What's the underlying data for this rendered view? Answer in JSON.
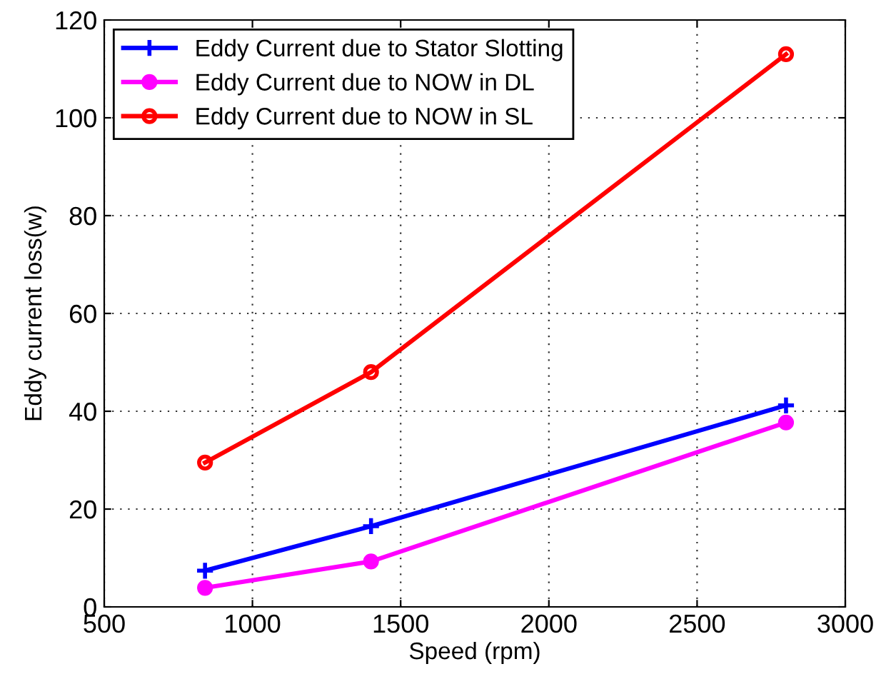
{
  "chart_data": {
    "type": "line",
    "xlabel": "Speed (rpm)",
    "ylabel": "Eddy current loss(w)",
    "x": [
      840,
      1400,
      2800
    ],
    "series": [
      {
        "name": "Eddy Current due to Stator Slotting",
        "color": "#0000ff",
        "marker": "cross",
        "values": [
          7.4,
          16.5,
          41.2
        ]
      },
      {
        "name": "Eddy Current due to NOW in DL",
        "color": "#ff00ff",
        "marker": "circle",
        "values": [
          3.9,
          9.3,
          37.7
        ]
      },
      {
        "name": "Eddy Current due to NOW in SL",
        "color": "#ff0000",
        "marker": "circle",
        "values": [
          29.5,
          48,
          113
        ]
      }
    ],
    "xlim": [
      500,
      3000
    ],
    "xticks": [
      500,
      1000,
      1500,
      2000,
      2500,
      3000
    ],
    "ylim": [
      0,
      120
    ],
    "yticks": [
      0,
      20,
      40,
      60,
      80,
      100,
      120
    ],
    "grid": true,
    "legend": "top left",
    "line_style": "solid"
  }
}
